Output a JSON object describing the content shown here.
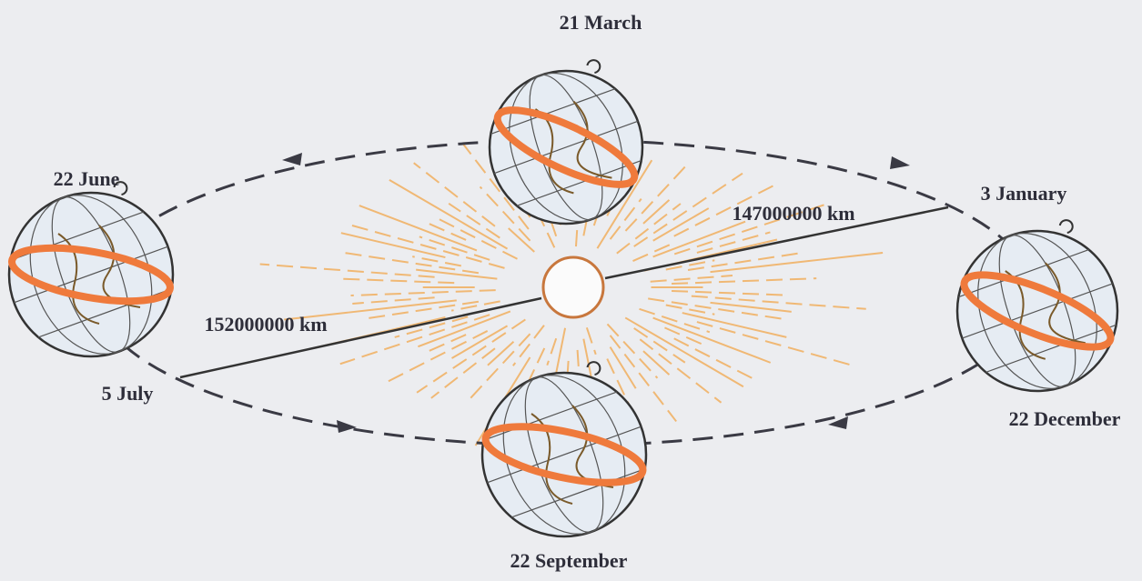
{
  "positions": [
    {
      "label": "21 March"
    },
    {
      "label": "22 June"
    },
    {
      "label": "5 July"
    },
    {
      "label": "22 September"
    },
    {
      "label": "22 December"
    },
    {
      "label": "3 January"
    }
  ],
  "distances": [
    "147000000 km",
    "152000000 km"
  ]
}
